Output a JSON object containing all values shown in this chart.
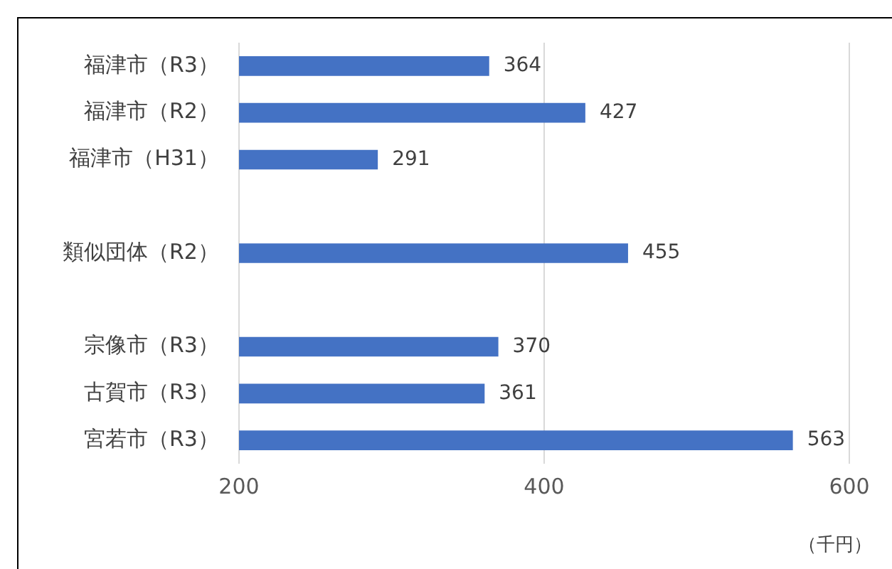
{
  "chart_data": {
    "type": "bar",
    "orientation": "horizontal",
    "categories": [
      "福津市（R3）",
      "福津市（R2）",
      "福津市（H31）",
      null,
      "類似団体（R2）",
      null,
      "宗像市（R3）",
      "古賀市（R3）",
      "宮若市（R3）"
    ],
    "values": [
      364,
      427,
      291,
      null,
      455,
      null,
      370,
      361,
      563
    ],
    "color": "#4472c4",
    "xlim": [
      200,
      600
    ],
    "xticks": [
      200,
      400,
      600
    ],
    "grid": "x",
    "legend": false,
    "data_labels": true,
    "annotations": [
      "（千円）"
    ]
  }
}
